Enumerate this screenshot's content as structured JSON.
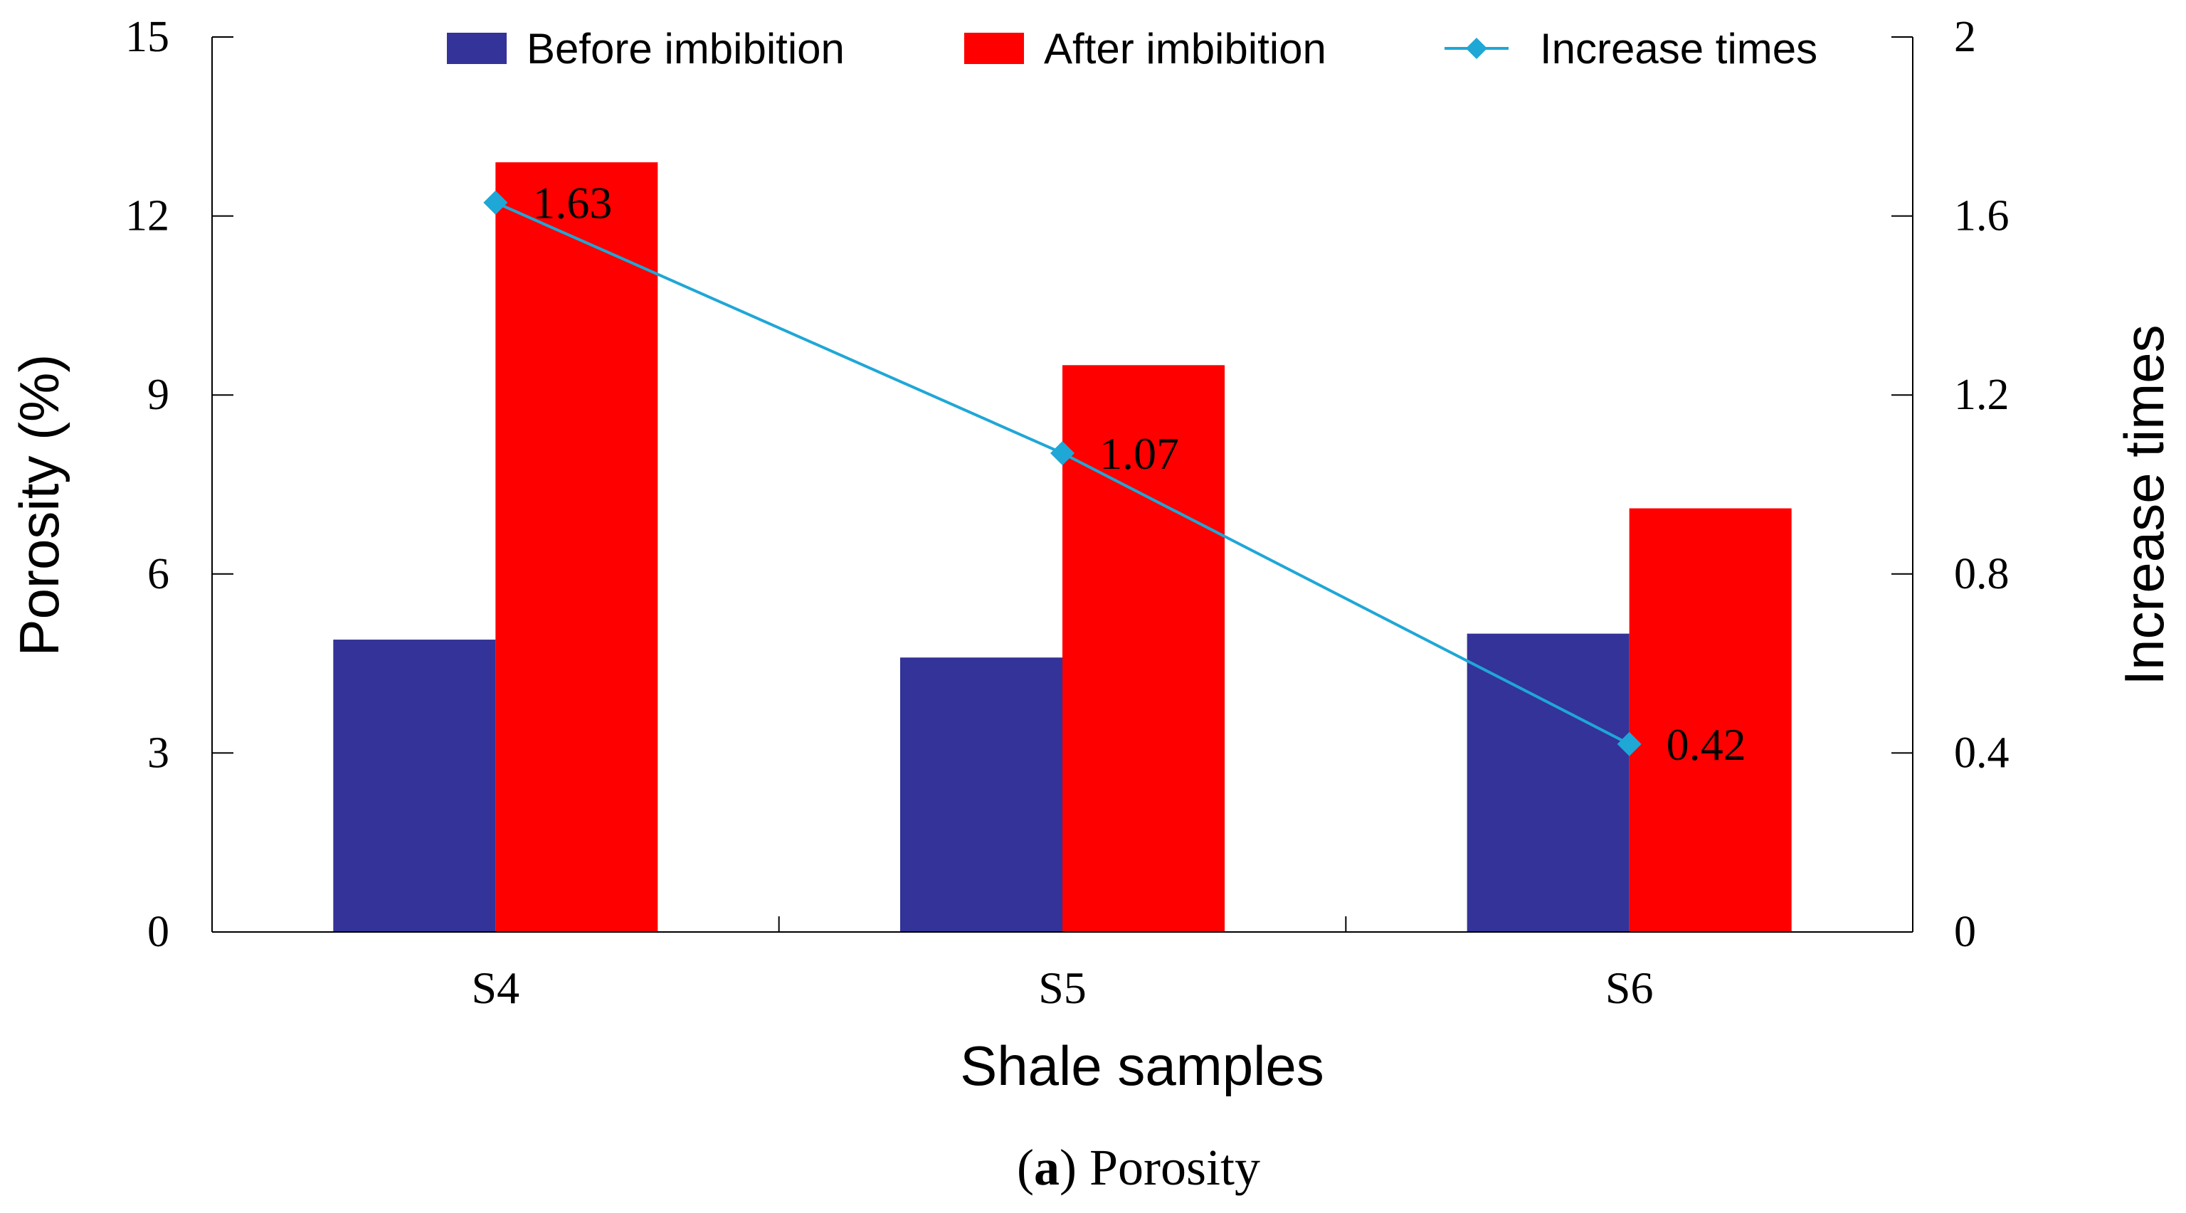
{
  "chart_data": {
    "type": "bar",
    "title": "",
    "caption_label": "a",
    "caption_text": "Porosity",
    "categories": [
      "S4",
      "S5",
      "S6"
    ],
    "series": [
      {
        "name": "Before imbibition",
        "values": [
          4.9,
          4.6,
          5.0
        ],
        "color": "#333399",
        "axis": "left",
        "kind": "bar"
      },
      {
        "name": "After imbibition",
        "values": [
          12.9,
          9.5,
          7.1
        ],
        "color": "#ff0000",
        "axis": "left",
        "kind": "bar"
      }
    ],
    "line_series": {
      "name": "Increase times",
      "values": [
        1.63,
        1.07,
        0.42
      ],
      "labels": [
        "1.63",
        "1.07",
        "0.42"
      ],
      "color": "#1fa7d6",
      "axis": "right"
    },
    "xlabel": "Shale samples",
    "ylabel": "Porosity (%)",
    "y2label": "Increase times",
    "ylim": [
      0,
      15
    ],
    "y2lim": [
      0,
      2
    ],
    "yticks": [
      "0",
      "3",
      "6",
      "9",
      "12",
      "15"
    ],
    "y2ticks": [
      "0",
      "0.4",
      "0.8",
      "1.2",
      "1.6",
      "2"
    ],
    "legend_position": "top"
  }
}
